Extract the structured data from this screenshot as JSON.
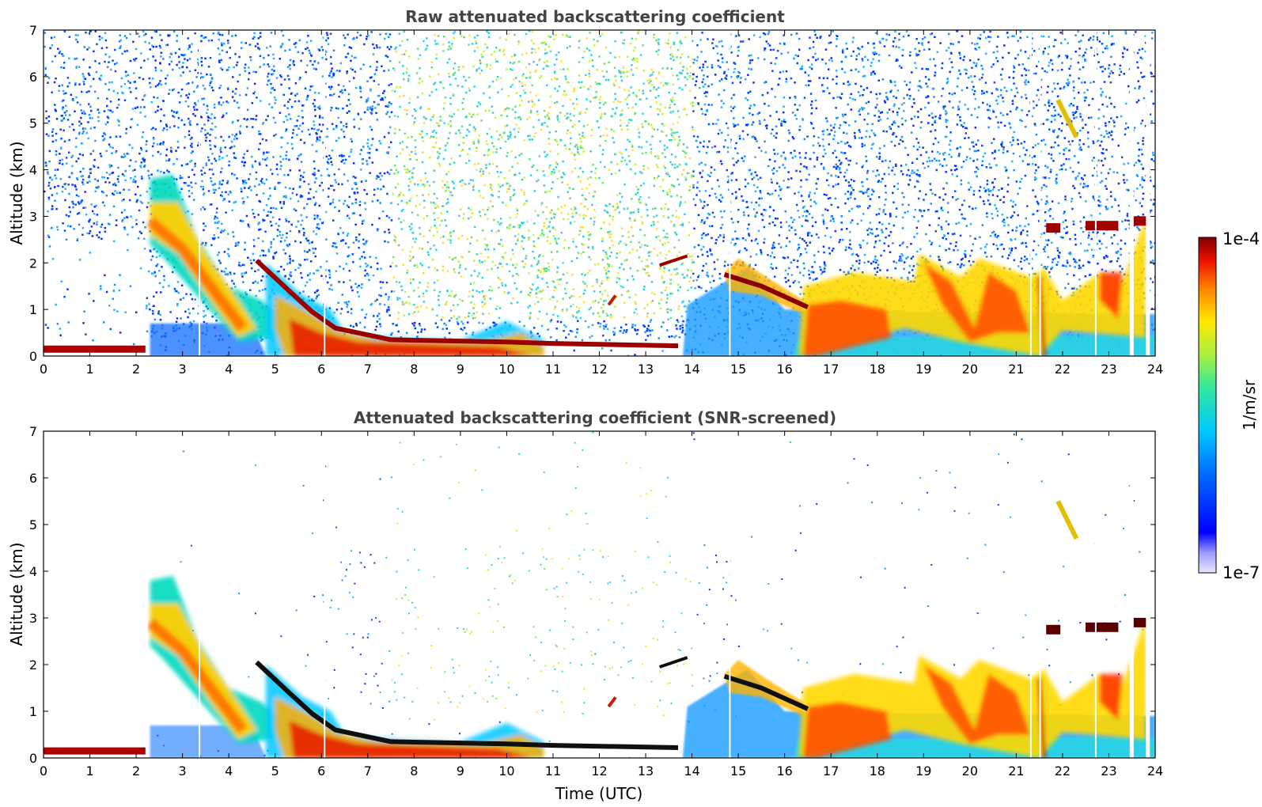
{
  "chart_data": [
    {
      "type": "heatmap",
      "title": "Raw attenuated backscattering coefficient",
      "xlabel": "",
      "ylabel": "Altitude (km)",
      "xlim": [
        0,
        24
      ],
      "ylim": [
        0,
        7
      ],
      "xticks": [
        "0",
        "1",
        "2",
        "3",
        "4",
        "5",
        "6",
        "7",
        "8",
        "9",
        "10",
        "11",
        "12",
        "13",
        "14",
        "15",
        "16",
        "17",
        "18",
        "19",
        "20",
        "21",
        "22",
        "23",
        "24"
      ],
      "yticks": [
        "0",
        "1",
        "2",
        "3",
        "4",
        "5",
        "6",
        "7"
      ],
      "screened": false
    },
    {
      "type": "heatmap",
      "title": "Attenuated backscattering coefficient (SNR-screened)",
      "xlabel": "Time (UTC)",
      "ylabel": "Altitude (km)",
      "xlim": [
        0,
        24
      ],
      "ylim": [
        0,
        7
      ],
      "xticks": [
        "0",
        "1",
        "2",
        "3",
        "4",
        "5",
        "6",
        "7",
        "8",
        "9",
        "10",
        "11",
        "12",
        "13",
        "14",
        "15",
        "16",
        "17",
        "18",
        "19",
        "20",
        "21",
        "22",
        "23",
        "24"
      ],
      "yticks": [
        "0",
        "1",
        "2",
        "3",
        "4",
        "5",
        "6",
        "7"
      ],
      "screened": true
    }
  ],
  "colorbar": {
    "label": "1/m/sr",
    "max_label": "1e-4",
    "min_label": "1e-7",
    "scale": "log",
    "colormap": "jet"
  },
  "features": {
    "surface_layer": [
      [
        0,
        0.15
      ],
      [
        2.2,
        0.15
      ]
    ],
    "descending_layer": [
      [
        2.3,
        2.9
      ],
      [
        3.0,
        2.3
      ],
      [
        3.6,
        1.5
      ],
      [
        4.3,
        0.6
      ]
    ],
    "cloud_base": [
      [
        4.6,
        2.05
      ],
      [
        5.3,
        1.4
      ],
      [
        5.8,
        0.95
      ],
      [
        6.3,
        0.6
      ],
      [
        7.5,
        0.35
      ],
      [
        10.0,
        0.3
      ],
      [
        11.0,
        0.27
      ],
      [
        13.7,
        0.22
      ]
    ],
    "elevated_layer_15": [
      [
        14.7,
        1.75
      ],
      [
        15.5,
        1.5
      ],
      [
        16.5,
        1.05
      ]
    ],
    "thin_cloud_13": [
      [
        13.3,
        1.95
      ],
      [
        13.9,
        2.15
      ]
    ],
    "cirrus_22": [
      [
        21.9,
        5.5
      ],
      [
        22.3,
        4.7
      ]
    ]
  }
}
